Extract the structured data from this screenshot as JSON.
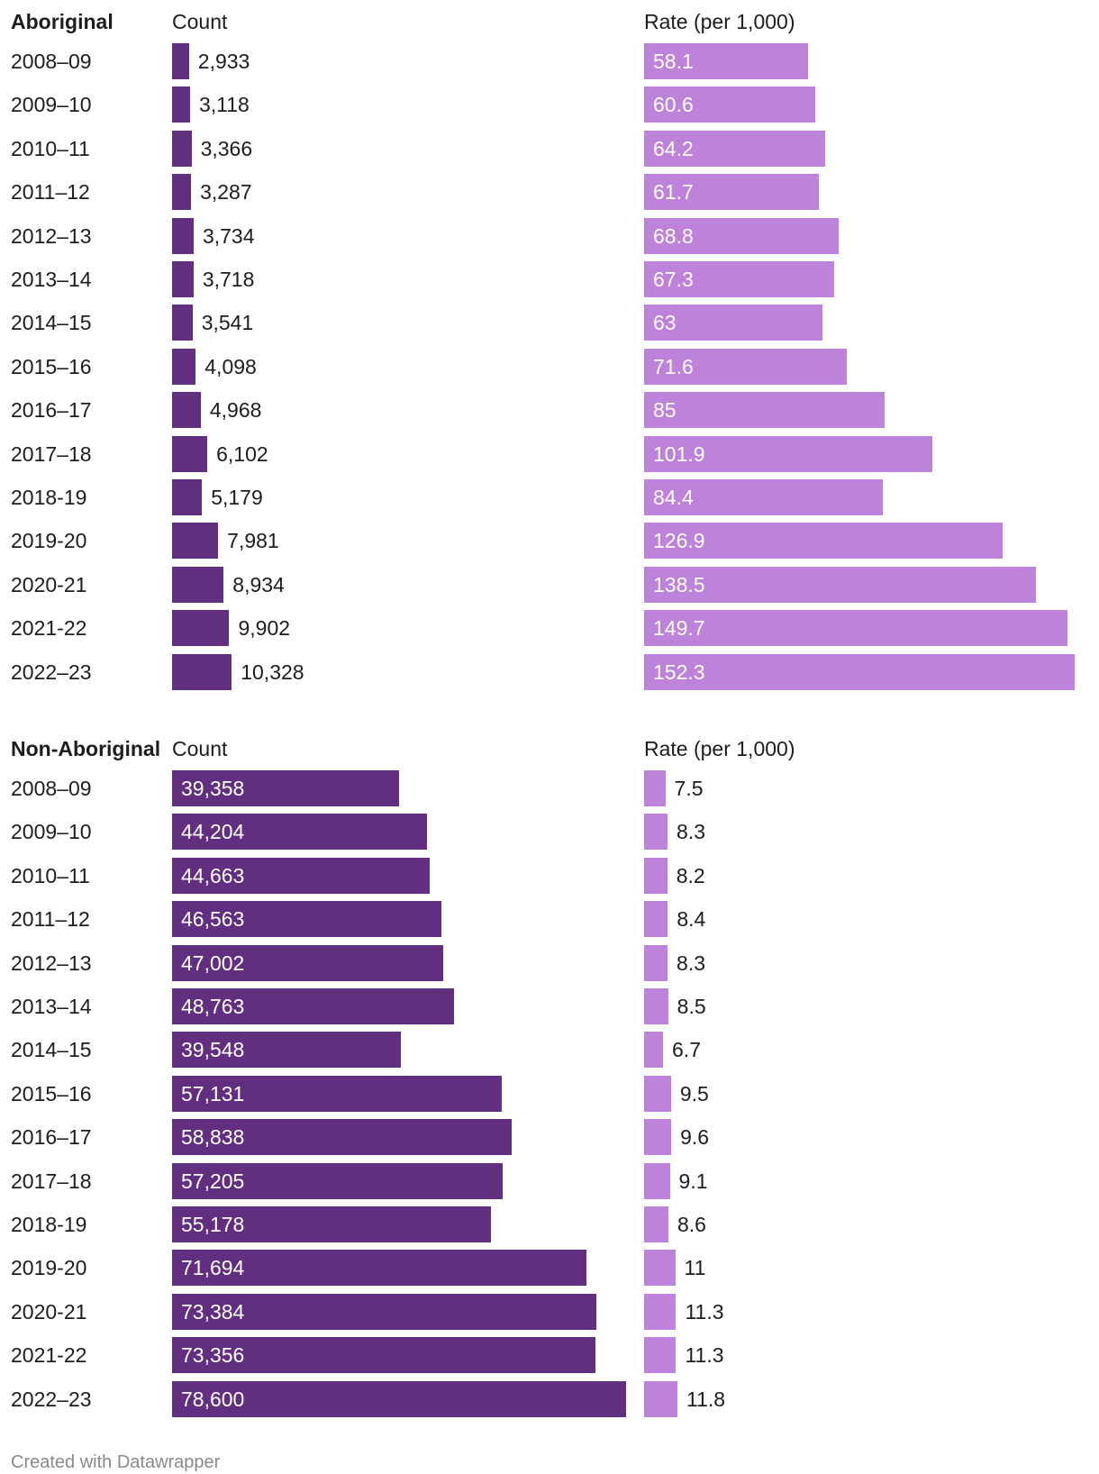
{
  "chart_data": [
    {
      "type": "bar",
      "group": "Aboriginal",
      "columns": [
        "Count",
        "Rate (per 1,000)"
      ],
      "categories": [
        "2008–09",
        "2009–10",
        "2010–11",
        "2011–12",
        "2012–13",
        "2013–14",
        "2014–15",
        "2015–16",
        "2016–17",
        "2017–18",
        "2018-19",
        "2019-20",
        "2020-21",
        "2021-22",
        "2022–23"
      ],
      "series": [
        {
          "name": "Count",
          "values": [
            2933,
            3118,
            3366,
            3287,
            3734,
            3718,
            3541,
            4098,
            4968,
            6102,
            5179,
            7981,
            8934,
            9902,
            10328
          ],
          "labels": [
            "2,933",
            "3,118",
            "3,366",
            "3,287",
            "3,734",
            "3,718",
            "3,541",
            "4,098",
            "4,968",
            "6,102",
            "5,179",
            "7,981",
            "8,934",
            "9,902",
            "10,328"
          ]
        },
        {
          "name": "Rate (per 1,000)",
          "values": [
            58.1,
            60.6,
            64.2,
            61.7,
            68.8,
            67.3,
            63,
            71.6,
            85,
            101.9,
            84.4,
            126.9,
            138.5,
            149.7,
            152.3
          ],
          "labels": [
            "58.1",
            "60.6",
            "64.2",
            "61.7",
            "68.8",
            "67.3",
            "63",
            "71.6",
            "85",
            "101.9",
            "84.4",
            "126.9",
            "138.5",
            "149.7",
            "152.3"
          ]
        }
      ]
    },
    {
      "type": "bar",
      "group": "Non-Aboriginal",
      "columns": [
        "Count",
        "Rate (per 1,000)"
      ],
      "categories": [
        "2008–09",
        "2009–10",
        "2010–11",
        "2011–12",
        "2012–13",
        "2013–14",
        "2014–15",
        "2015–16",
        "2016–17",
        "2017–18",
        "2018-19",
        "2019-20",
        "2020-21",
        "2021-22",
        "2022–23"
      ],
      "series": [
        {
          "name": "Count",
          "values": [
            39358,
            44204,
            44663,
            46563,
            47002,
            48763,
            39548,
            57131,
            58838,
            57205,
            55178,
            71694,
            73384,
            73356,
            78600
          ],
          "labels": [
            "39,358",
            "44,204",
            "44,663",
            "46,563",
            "47,002",
            "48,763",
            "39,548",
            "57,131",
            "58,838",
            "57,205",
            "55,178",
            "71,694",
            "73,384",
            "73,356",
            "78,600"
          ]
        },
        {
          "name": "Rate (per 1,000)",
          "values": [
            7.5,
            8.3,
            8.2,
            8.4,
            8.3,
            8.5,
            6.7,
            9.5,
            9.6,
            9.1,
            8.6,
            11,
            11.3,
            11.3,
            11.8
          ],
          "labels": [
            "7.5",
            "8.3",
            "8.2",
            "8.4",
            "8.3",
            "8.5",
            "6.7",
            "9.5",
            "9.6",
            "9.1",
            "8.6",
            "11",
            "11.3",
            "11.3",
            "11.8"
          ]
        }
      ]
    }
  ],
  "scales": {
    "count_max": 78600,
    "rate_max": 152.3
  },
  "colors": {
    "count": "#622f80",
    "rate": "#bd82d9"
  },
  "footer": "Created with Datawrapper"
}
